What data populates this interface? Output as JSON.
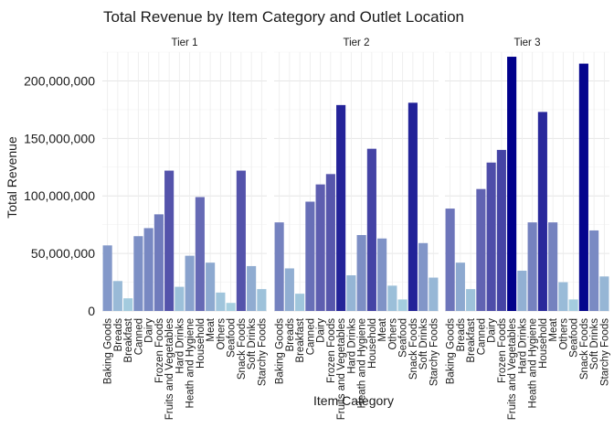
{
  "chart_data": {
    "type": "bar",
    "title": "Total Revenue by Item Category and Outlet Location",
    "xlabel": "Item Category",
    "ylabel": "Total Revenue",
    "facet_variable": "Outlet Location",
    "ylim": [
      0,
      225000000
    ],
    "yticks": [
      0,
      50000000,
      100000000,
      150000000,
      200000000
    ],
    "ytick_labels": [
      "0",
      "50,000,000",
      "100,000,000",
      "150,000,000",
      "200,000,000"
    ],
    "grid": true,
    "legend": "none",
    "fill_scale": {
      "low": "#a6cfe0",
      "mid": "#5b5aae",
      "high": "#00008b"
    },
    "categories": [
      "Baking Goods",
      "Breads",
      "Breakfast",
      "Canned",
      "Dairy",
      "Frozen Foods",
      "Fruits and Vegetables",
      "Hard Drinks",
      "Heath and Hygiene",
      "Household",
      "Meat",
      "Others",
      "Seafood",
      "Snack Foods",
      "Soft Drinks",
      "Starchy Foods"
    ],
    "panels": [
      {
        "name": "Tier 1",
        "values": [
          57000000,
          26000000,
          11000000,
          65000000,
          72000000,
          84000000,
          122000000,
          21000000,
          48000000,
          99000000,
          42000000,
          16000000,
          7000000,
          122000000,
          39000000,
          19000000
        ]
      },
      {
        "name": "Tier 2",
        "values": [
          77000000,
          37000000,
          15000000,
          95000000,
          110000000,
          119000000,
          179000000,
          31000000,
          66000000,
          141000000,
          63000000,
          22000000,
          10000000,
          181000000,
          59000000,
          29000000
        ]
      },
      {
        "name": "Tier 3",
        "values": [
          89000000,
          42000000,
          19000000,
          106000000,
          129000000,
          140000000,
          221000000,
          35000000,
          77000000,
          173000000,
          77000000,
          25000000,
          10000000,
          215000000,
          70000000,
          30000000
        ]
      }
    ]
  }
}
